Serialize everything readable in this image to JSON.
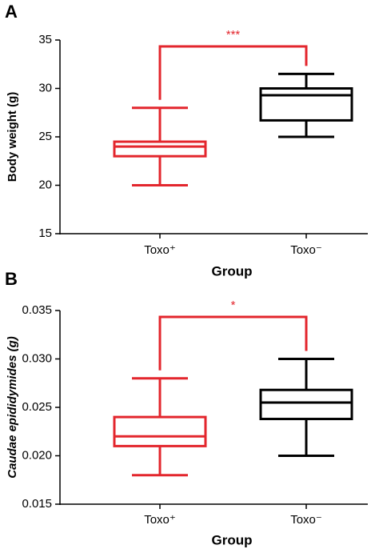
{
  "chart_data": [
    {
      "type": "box",
      "panel_label": "A",
      "y_label": "Body weight (g)",
      "x_label": "Group",
      "categories": [
        "Toxo⁺",
        "Toxo⁻"
      ],
      "colors": [
        "#e3262d",
        "#000000"
      ],
      "whislo": [
        20,
        25
      ],
      "q1": [
        23,
        26.7
      ],
      "median": [
        24,
        29.3
      ],
      "q3": [
        24.5,
        30
      ],
      "whishi": [
        28,
        31.5
      ],
      "significance": "***",
      "ylim": [
        15,
        35
      ],
      "yticks": [
        15,
        20,
        25,
        30,
        35
      ]
    },
    {
      "type": "box",
      "panel_label": "B",
      "y_label": "Caudae epididymides  (g)",
      "x_label": "Group",
      "categories": [
        "Toxo⁺",
        "Toxo⁻"
      ],
      "colors": [
        "#e3262d",
        "#000000"
      ],
      "whislo": [
        0.018,
        0.02
      ],
      "q1": [
        0.021,
        0.0238
      ],
      "median": [
        0.022,
        0.0255
      ],
      "q3": [
        0.024,
        0.0268
      ],
      "whishi": [
        0.028,
        0.03
      ],
      "significance": "*",
      "ylim": [
        0.015,
        0.035
      ],
      "yticks": [
        0.015,
        {
          "value": 0.02,
          "label": "0.020"
        },
        0.025,
        {
          "value": 0.03,
          "label": "0.030"
        },
        0.035
      ]
    }
  ]
}
